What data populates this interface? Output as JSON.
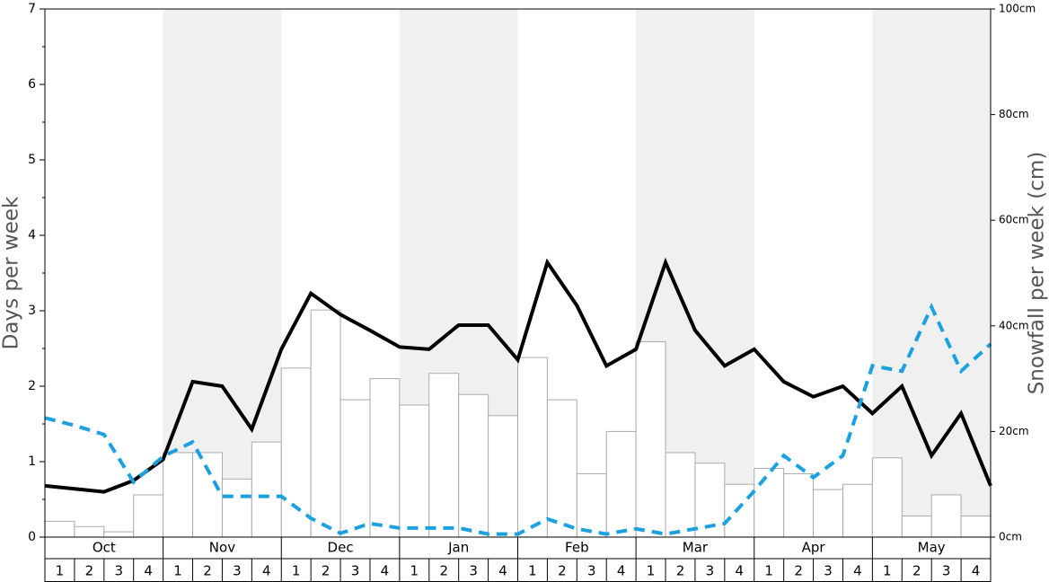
{
  "chart_data": {
    "type": "bar",
    "y_label": "Days per week",
    "y2_label": "Snowfall per week (cm)",
    "months": [
      "Oct",
      "Nov",
      "Dec",
      "Jan",
      "Feb",
      "Mar",
      "Apr",
      "May"
    ],
    "week_labels": [
      "1",
      "2",
      "3",
      "4"
    ],
    "shade_alternate_months": true,
    "ylim": [
      0,
      7
    ],
    "yticks": [
      0,
      1,
      2,
      3,
      4,
      5,
      6,
      7
    ],
    "y2lim": [
      0,
      100
    ],
    "y2ticks": [
      {
        "value": 0,
        "label": "0cm"
      },
      {
        "value": 20,
        "label": "20cm"
      },
      {
        "value": 40,
        "label": "40cm"
      },
      {
        "value": 60,
        "label": "60cm"
      },
      {
        "value": 80,
        "label": "80cm"
      },
      {
        "value": 100,
        "label": "100cm"
      }
    ],
    "series": [
      {
        "type": "bar",
        "axis": "y2",
        "color": "#ffffff",
        "values": [
          3,
          2,
          1,
          8,
          16,
          16,
          11,
          18,
          32,
          43,
          26,
          30,
          25,
          31,
          27,
          23,
          34,
          26,
          12,
          20,
          37,
          16,
          14,
          10,
          13,
          12,
          9,
          10,
          15,
          4,
          8,
          4
        ]
      },
      {
        "type": "line",
        "color": "#000000",
        "dashed": false,
        "values": [
          0.68,
          0.64,
          0.6,
          0.75,
          1.03,
          2.06,
          2.0,
          1.43,
          2.49,
          3.23,
          2.95,
          2.74,
          2.52,
          2.49,
          2.81,
          2.81,
          2.35,
          3.64,
          3.07,
          2.27,
          2.49,
          3.64,
          2.74,
          2.27,
          2.49,
          2.06,
          1.86,
          2.0,
          1.64,
          2.0,
          1.08,
          1.64,
          0.68
        ]
      },
      {
        "type": "line",
        "color": "#1ba1e2",
        "dashed": true,
        "values": [
          1.58,
          1.48,
          1.36,
          0.73,
          1.07,
          1.26,
          0.54,
          0.54,
          0.54,
          0.25,
          0.05,
          0.18,
          0.12,
          0.12,
          0.12,
          0.04,
          0.04,
          0.24,
          0.11,
          0.04,
          0.11,
          0.04,
          0.11,
          0.18,
          0.61,
          1.08,
          0.79,
          1.08,
          2.27,
          2.2,
          3.05,
          2.2,
          2.56
        ]
      }
    ]
  }
}
